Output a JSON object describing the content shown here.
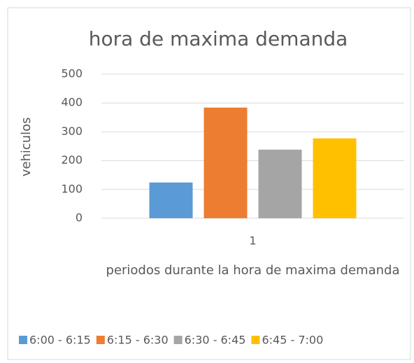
{
  "chart_data": {
    "type": "bar",
    "title": "hora de maxima demanda",
    "x_label": "periodos durante la hora de maxima demanda",
    "y_label": "vehiculos",
    "categories": [
      "1"
    ],
    "series": [
      {
        "name": "6:00 - 6:15",
        "color": "#5b9bd5",
        "values": [
          124
        ]
      },
      {
        "name": "6:15 - 6:30",
        "color": "#ed7d31",
        "values": [
          384
        ]
      },
      {
        "name": "6:30 - 6:45",
        "color": "#a5a5a5",
        "values": [
          238
        ]
      },
      {
        "name": "6:45 - 7:00",
        "color": "#ffc000",
        "values": [
          277
        ]
      }
    ],
    "ylim": [
      0,
      500
    ],
    "yticks": [
      0,
      100,
      200,
      300,
      400,
      500
    ],
    "grid": true,
    "legend": "bottom"
  }
}
